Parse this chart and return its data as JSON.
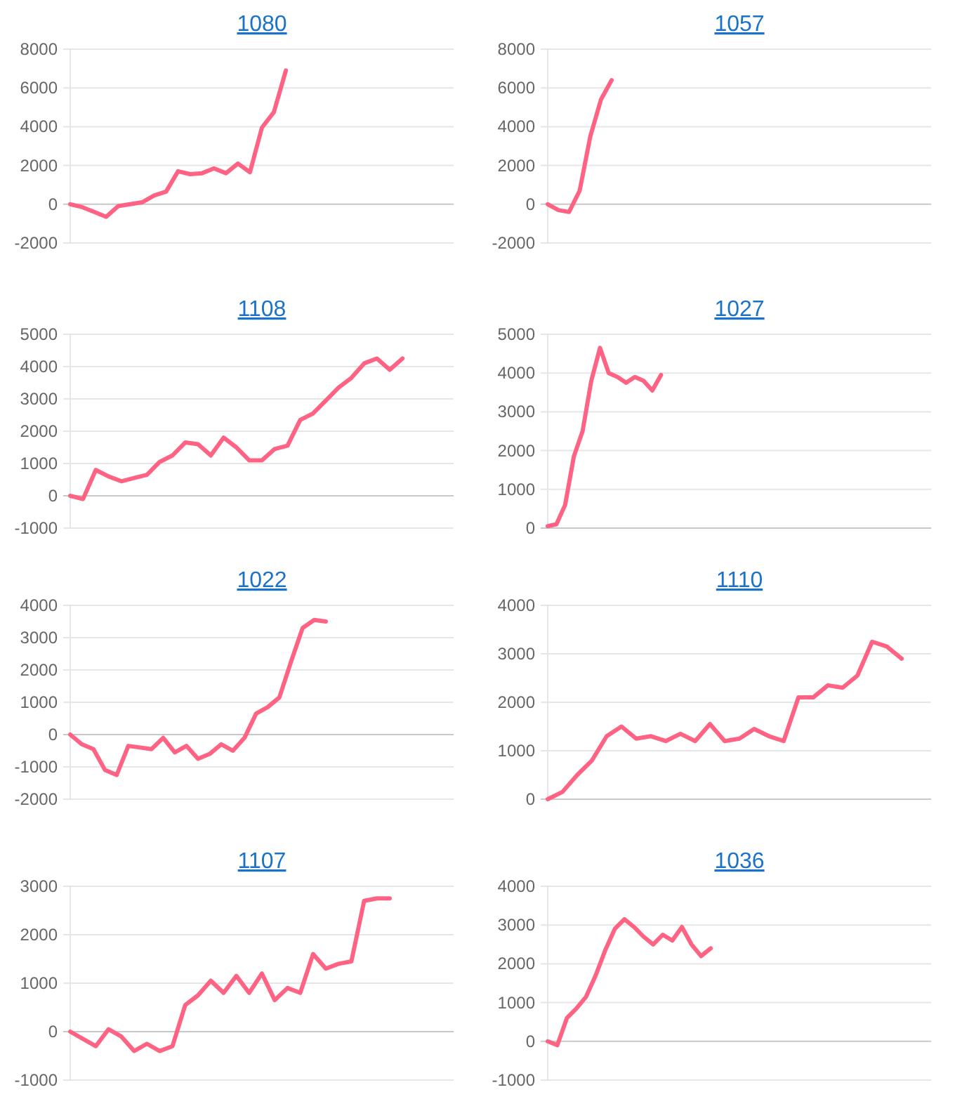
{
  "chart_data": [
    {
      "type": "line",
      "title": "1080",
      "grid": "y",
      "tick_labels": "y",
      "ylim": [
        -2000,
        8000
      ],
      "yticks": [
        -2000,
        0,
        2000,
        4000,
        6000,
        8000
      ],
      "categories": [
        null,
        null,
        null,
        null,
        null,
        null,
        null,
        null,
        null,
        null,
        null,
        null,
        null,
        null,
        null,
        null,
        null,
        null,
        null,
        null,
        null,
        null,
        null,
        null,
        null,
        null,
        null,
        null,
        null,
        null,
        null,
        null,
        null
      ],
      "series": [
        {
          "color": "#ff6384",
          "values": [
            0,
            -150,
            -400,
            -650,
            -100,
            0,
            100,
            450,
            650,
            1700,
            1550,
            1600,
            1850,
            1600,
            2100,
            1650,
            3950,
            4750,
            6900,
            null,
            null,
            null,
            null,
            null,
            null,
            null,
            null,
            null,
            null,
            null,
            null,
            null,
            null
          ]
        }
      ]
    },
    {
      "type": "line",
      "title": "1057",
      "grid": "y",
      "tick_labels": "y",
      "ylim": [
        -2000,
        8000
      ],
      "yticks": [
        -2000,
        0,
        2000,
        4000,
        6000,
        8000
      ],
      "categories": [
        null,
        null,
        null,
        null,
        null,
        null,
        null,
        null,
        null,
        null,
        null,
        null,
        null,
        null,
        null,
        null,
        null,
        null,
        null,
        null,
        null,
        null,
        null,
        null,
        null,
        null,
        null,
        null,
        null,
        null,
        null,
        null,
        null,
        null,
        null,
        null,
        null
      ],
      "series": [
        {
          "color": "#ff6384",
          "values": [
            0,
            -300,
            -400,
            700,
            3500,
            5400,
            6400,
            null,
            null,
            null,
            null,
            null,
            null,
            null,
            null,
            null,
            null,
            null,
            null,
            null,
            null,
            null,
            null,
            null,
            null,
            null,
            null,
            null,
            null,
            null,
            null,
            null,
            null,
            null,
            null,
            null,
            null
          ]
        }
      ]
    },
    {
      "type": "line",
      "title": "1108",
      "grid": "y",
      "tick_labels": "y",
      "ylim": [
        -1000,
        5000
      ],
      "yticks": [
        -1000,
        0,
        1000,
        2000,
        3000,
        4000,
        5000
      ],
      "categories": [
        null,
        null,
        null,
        null,
        null,
        null,
        null,
        null,
        null,
        null,
        null,
        null,
        null,
        null,
        null,
        null,
        null,
        null,
        null,
        null,
        null,
        null,
        null,
        null,
        null,
        null,
        null,
        null,
        null,
        null,
        null
      ],
      "series": [
        {
          "color": "#ff6384",
          "values": [
            0,
            -100,
            800,
            600,
            450,
            550,
            650,
            1050,
            1250,
            1650,
            1600,
            1250,
            1800,
            1500,
            1100,
            1100,
            1450,
            1550,
            2350,
            2550,
            2950,
            3350,
            3650,
            4100,
            4250,
            3900,
            4250,
            null,
            null,
            null,
            null
          ]
        }
      ]
    },
    {
      "type": "line",
      "title": "1027",
      "grid": "y",
      "tick_labels": "y",
      "ylim": [
        0,
        5000
      ],
      "yticks": [
        0,
        1000,
        2000,
        3000,
        4000,
        5000
      ],
      "categories": [
        null,
        null,
        null,
        null,
        null,
        null,
        null,
        null,
        null,
        null,
        null,
        null,
        null,
        null,
        null,
        null,
        null,
        null,
        null,
        null,
        null,
        null,
        null,
        null,
        null,
        null,
        null,
        null,
        null,
        null,
        null,
        null,
        null,
        null,
        null,
        null,
        null,
        null,
        null,
        null,
        null,
        null,
        null,
        null,
        null
      ],
      "series": [
        {
          "color": "#ff6384",
          "values": [
            50,
            100,
            600,
            1850,
            2500,
            3800,
            4650,
            4000,
            3900,
            3750,
            3900,
            3800,
            3550,
            3950,
            null,
            null,
            null,
            null,
            null,
            null,
            null,
            null,
            null,
            null,
            null,
            null,
            null,
            null,
            null,
            null,
            null,
            null,
            null,
            null,
            null,
            null,
            null,
            null,
            null,
            null,
            null,
            null,
            null,
            null,
            null
          ]
        }
      ]
    },
    {
      "type": "line",
      "title": "1022",
      "grid": "y",
      "tick_labels": "y",
      "ylim": [
        -2000,
        4000
      ],
      "yticks": [
        -2000,
        -1000,
        0,
        1000,
        2000,
        3000,
        4000
      ],
      "categories": [
        null,
        null,
        null,
        null,
        null,
        null,
        null,
        null,
        null,
        null,
        null,
        null,
        null,
        null,
        null,
        null,
        null,
        null,
        null,
        null,
        null,
        null,
        null,
        null,
        null,
        null,
        null,
        null,
        null,
        null,
        null,
        null,
        null,
        null
      ],
      "series": [
        {
          "color": "#ff6384",
          "values": [
            0,
            -300,
            -450,
            -1100,
            -1250,
            -350,
            -400,
            -450,
            -100,
            -550,
            -350,
            -750,
            -600,
            -300,
            -500,
            -100,
            650,
            850,
            1150,
            2250,
            3300,
            3550,
            3500,
            null,
            null,
            null,
            null,
            null,
            null,
            null,
            null,
            null,
            null,
            null
          ]
        }
      ]
    },
    {
      "type": "line",
      "title": "1110",
      "grid": "y",
      "tick_labels": "y",
      "ylim": [
        0,
        4000
      ],
      "yticks": [
        0,
        1000,
        2000,
        3000,
        4000
      ],
      "categories": [
        null,
        null,
        null,
        null,
        null,
        null,
        null,
        null,
        null,
        null,
        null,
        null,
        null,
        null,
        null,
        null,
        null,
        null,
        null,
        null,
        null,
        null,
        null,
        null,
        null,
        null,
        null
      ],
      "series": [
        {
          "color": "#ff6384",
          "values": [
            0,
            150,
            500,
            800,
            1300,
            1500,
            1250,
            1300,
            1200,
            1350,
            1200,
            1550,
            1200,
            1250,
            1450,
            1300,
            1200,
            2100,
            2100,
            2350,
            2300,
            2550,
            3250,
            3150,
            2900,
            null,
            null
          ]
        }
      ]
    },
    {
      "type": "line",
      "title": "1107",
      "grid": "y",
      "tick_labels": "y",
      "ylim": [
        -1000,
        3000
      ],
      "yticks": [
        -1000,
        0,
        1000,
        2000,
        3000
      ],
      "categories": [
        null,
        null,
        null,
        null,
        null,
        null,
        null,
        null,
        null,
        null,
        null,
        null,
        null,
        null,
        null,
        null,
        null,
        null,
        null,
        null,
        null,
        null,
        null,
        null,
        null,
        null,
        null,
        null,
        null,
        null,
        null
      ],
      "series": [
        {
          "color": "#ff6384",
          "values": [
            0,
            -150,
            -300,
            50,
            -100,
            -400,
            -250,
            -400,
            -300,
            550,
            750,
            1050,
            800,
            1150,
            800,
            1200,
            650,
            900,
            800,
            1600,
            1300,
            1400,
            1450,
            2700,
            2750,
            2750,
            null,
            null,
            null,
            null,
            null
          ]
        }
      ]
    },
    {
      "type": "line",
      "title": "1036",
      "grid": "y",
      "tick_labels": "y",
      "ylim": [
        -1000,
        4000
      ],
      "yticks": [
        -1000,
        0,
        1000,
        2000,
        3000,
        4000
      ],
      "categories": [
        null,
        null,
        null,
        null,
        null,
        null,
        null,
        null,
        null,
        null,
        null,
        null,
        null,
        null,
        null,
        null,
        null,
        null,
        null,
        null,
        null,
        null,
        null,
        null,
        null,
        null,
        null,
        null,
        null,
        null,
        null,
        null,
        null,
        null,
        null,
        null,
        null,
        null,
        null,
        null,
        null
      ],
      "series": [
        {
          "color": "#ff6384",
          "values": [
            0,
            -100,
            600,
            850,
            1150,
            1700,
            2350,
            2900,
            3150,
            2950,
            2700,
            2500,
            2750,
            2600,
            2950,
            2500,
            2200,
            2400,
            null,
            null,
            null,
            null,
            null,
            null,
            null,
            null,
            null,
            null,
            null,
            null,
            null,
            null,
            null,
            null,
            null,
            null,
            null,
            null,
            null,
            null,
            null
          ]
        }
      ]
    }
  ]
}
